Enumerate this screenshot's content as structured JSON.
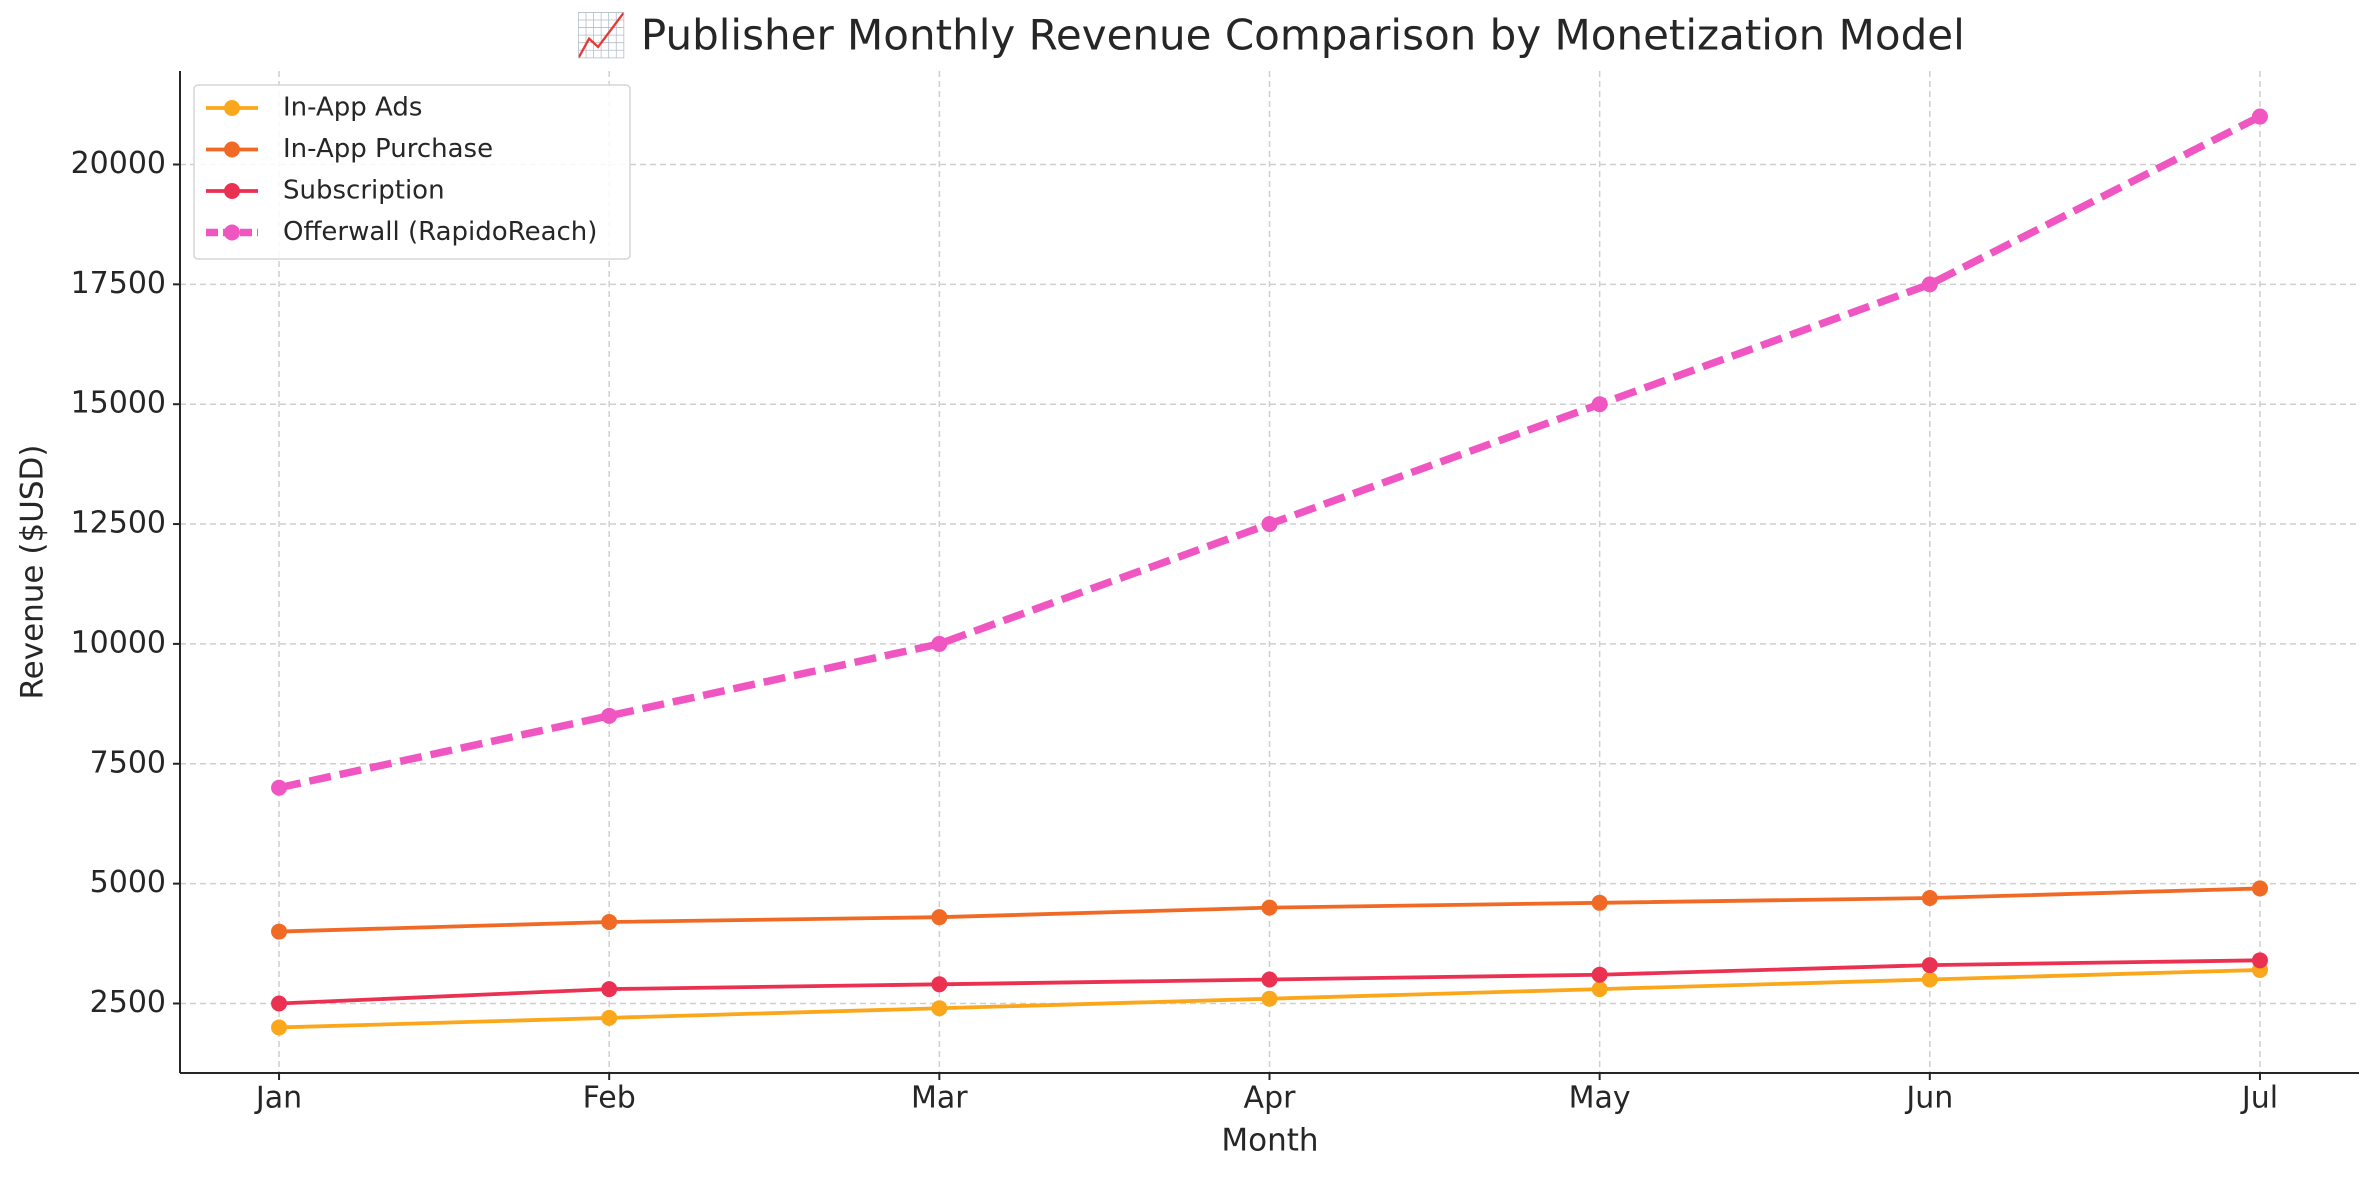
{
  "chart_data": {
    "type": "line",
    "title": "📈 Publisher Monthly Revenue Comparison by Monetization Model",
    "x_label": "Month",
    "y_label": "Revenue ($USD)",
    "categories": [
      "Jan",
      "Feb",
      "Mar",
      "Apr",
      "May",
      "Jun",
      "Jul"
    ],
    "series": [
      {
        "name": "In-App Ads",
        "color": "#fba71b",
        "values": [
          2000,
          2200,
          2400,
          2600,
          2800,
          3000,
          3200
        ]
      },
      {
        "name": "In-App Purchase",
        "color": "#f06a25",
        "values": [
          4000,
          4200,
          4300,
          4500,
          4600,
          4700,
          4900
        ]
      },
      {
        "name": "Subscription",
        "color": "#ea3152",
        "values": [
          2500,
          2800,
          2900,
          3000,
          3100,
          3300,
          3400
        ]
      },
      {
        "name": "Offerwall (RapidoReach)",
        "color": "#f056c2",
        "values": [
          7000,
          8500,
          10000,
          12500,
          15000,
          17500,
          21000
        ],
        "dashed": true
      }
    ],
    "ylim": [
      1050,
      21950
    ],
    "yticks": [
      2500,
      5000,
      7500,
      10000,
      12500,
      15000,
      17500,
      20000
    ],
    "grid": true,
    "legend": "upper-left"
  }
}
